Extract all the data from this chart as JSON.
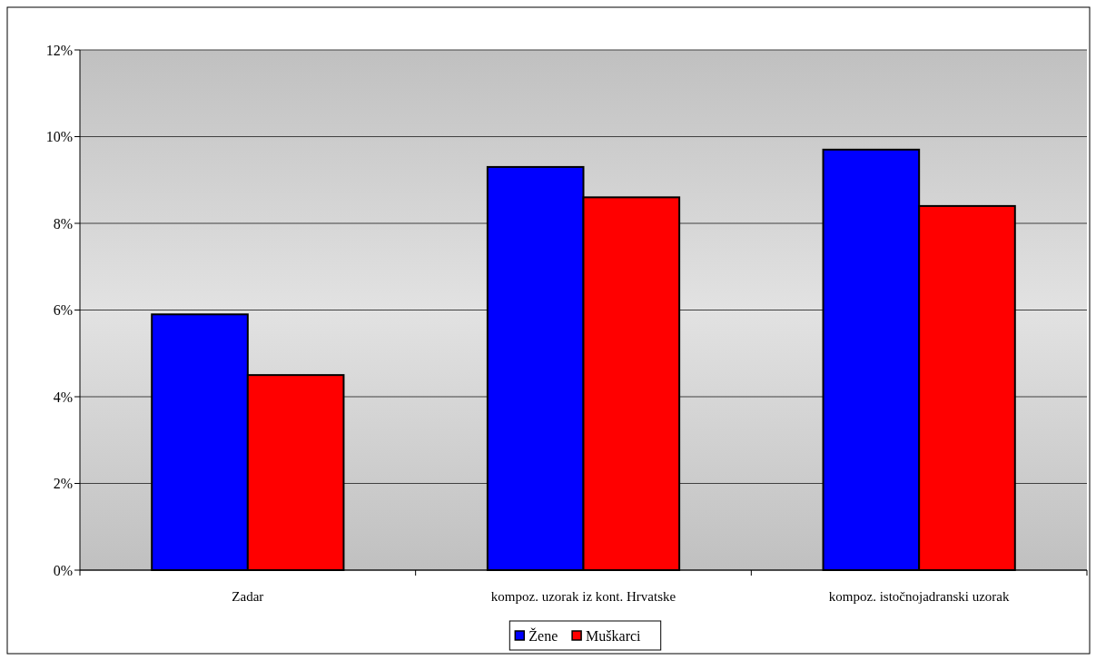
{
  "chart_data": {
    "type": "bar",
    "categories": [
      "Zadar",
      "kompoz. uzorak iz kont. Hrvatske",
      "kompoz. istočnojadranski uzorak"
    ],
    "series": [
      {
        "name": "Žene",
        "color": "#0000ff",
        "values": [
          5.9,
          9.3,
          9.7
        ]
      },
      {
        "name": "Muškarci",
        "color": "#ff0000",
        "values": [
          4.5,
          8.6,
          8.4
        ]
      }
    ],
    "ylim": [
      0,
      12
    ],
    "yticks": [
      {
        "value": 0,
        "label": "0%"
      },
      {
        "value": 2,
        "label": "2%"
      },
      {
        "value": 4,
        "label": "4%"
      },
      {
        "value": 6,
        "label": "6%"
      },
      {
        "value": 8,
        "label": "8%"
      },
      {
        "value": 10,
        "label": "10%"
      },
      {
        "value": 12,
        "label": "12%"
      }
    ],
    "grid": "y",
    "legend": "bottom"
  }
}
